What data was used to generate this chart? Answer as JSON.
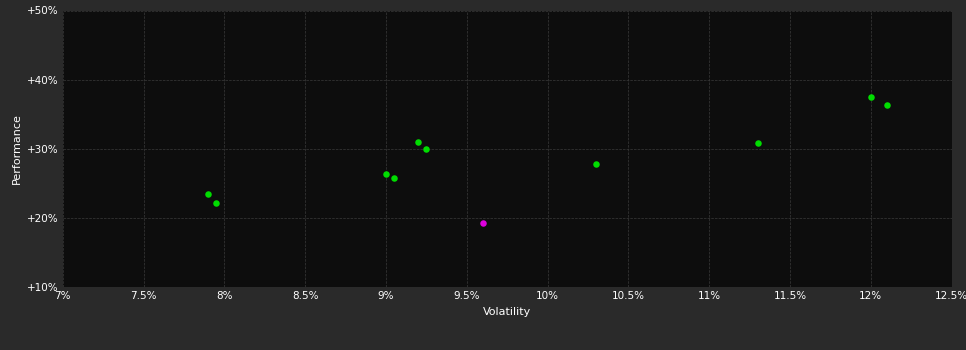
{
  "background_color": "#2a2a2a",
  "plot_bg_color": "#0d0d0d",
  "grid_color": "#3a3a3a",
  "text_color": "#ffffff",
  "xlabel": "Volatility",
  "ylabel": "Performance",
  "xlim": [
    0.07,
    0.125
  ],
  "ylim": [
    0.1,
    0.5
  ],
  "xticks": [
    0.07,
    0.075,
    0.08,
    0.085,
    0.09,
    0.095,
    0.1,
    0.105,
    0.11,
    0.115,
    0.12,
    0.125
  ],
  "xtick_labels": [
    "7%",
    "7.5%",
    "8%",
    "8.5%",
    "9%",
    "9.5%",
    "10%",
    "10.5%",
    "11%",
    "11.5%",
    "12%",
    "12.5%"
  ],
  "yticks": [
    0.1,
    0.2,
    0.3,
    0.4,
    0.5
  ],
  "ytick_labels": [
    "+10%",
    "+20%",
    "+30%",
    "+40%",
    "+50%"
  ],
  "green_points": [
    [
      0.079,
      0.235
    ],
    [
      0.0795,
      0.222
    ],
    [
      0.09,
      0.263
    ],
    [
      0.0905,
      0.258
    ],
    [
      0.092,
      0.31
    ],
    [
      0.0925,
      0.3
    ],
    [
      0.103,
      0.278
    ],
    [
      0.113,
      0.308
    ],
    [
      0.12,
      0.375
    ],
    [
      0.121,
      0.364
    ]
  ],
  "magenta_points": [
    [
      0.096,
      0.193
    ]
  ],
  "green_color": "#00dd00",
  "magenta_color": "#dd00dd",
  "marker_size": 22,
  "xlabel_fontsize": 8,
  "ylabel_fontsize": 8,
  "tick_fontsize": 7.5
}
